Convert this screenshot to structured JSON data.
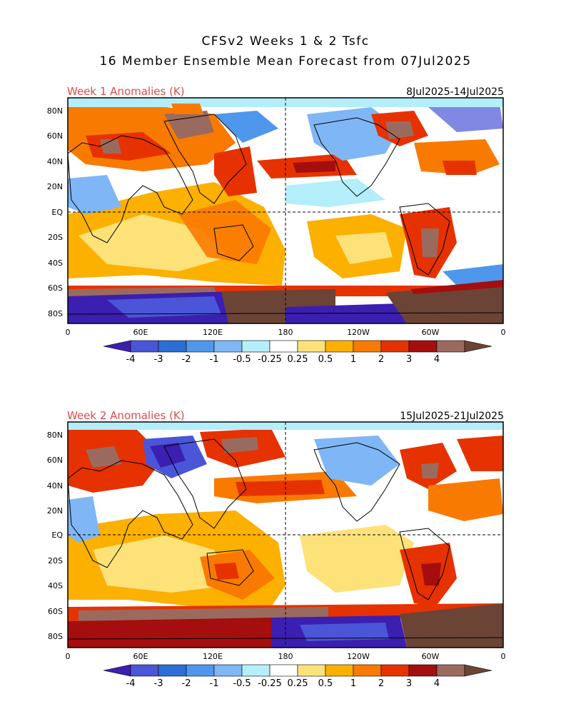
{
  "title": {
    "line1": "CFSv2 Weeks 1 & 2 Tsfc",
    "line2": "16 Member Ensemble Mean Forecast from 07Jul2025"
  },
  "panels": [
    {
      "label": "Week 1 Anomalies (K)",
      "date_range": "8Jul2025-14Jul2025",
      "lat_ticks": [
        "80N",
        "60N",
        "40N",
        "20N",
        "EQ",
        "20S",
        "40S",
        "60S",
        "80S"
      ],
      "lon_ticks": [
        "0",
        "60E",
        "120E",
        "180",
        "120W",
        "60W",
        "0"
      ]
    },
    {
      "label": "Week 2 Anomalies (K)",
      "date_range": "15Jul2025-21Jul2025",
      "lat_ticks": [
        "80N",
        "60N",
        "40N",
        "20N",
        "EQ",
        "20S",
        "40S",
        "60S",
        "80S"
      ],
      "lon_ticks": [
        "0",
        "60E",
        "120E",
        "180",
        "120W",
        "60W",
        "0"
      ]
    }
  ],
  "colorbar": {
    "labels": [
      "-4",
      "-3",
      "-2",
      "-1",
      "-0.5",
      "-0.25",
      "0.25",
      "0.5",
      "1",
      "2",
      "3",
      "4"
    ],
    "colors": [
      "#3b1fb0",
      "#4a55d8",
      "#2b6fd6",
      "#4f97ec",
      "#7fb6f5",
      "#b4eefa",
      "#ffffff",
      "#fde27a",
      "#fcb000",
      "#f97a00",
      "#e63200",
      "#a50e0e",
      "#9b6a5f",
      "#6b4436"
    ]
  },
  "label_color": "#e04a4a"
}
